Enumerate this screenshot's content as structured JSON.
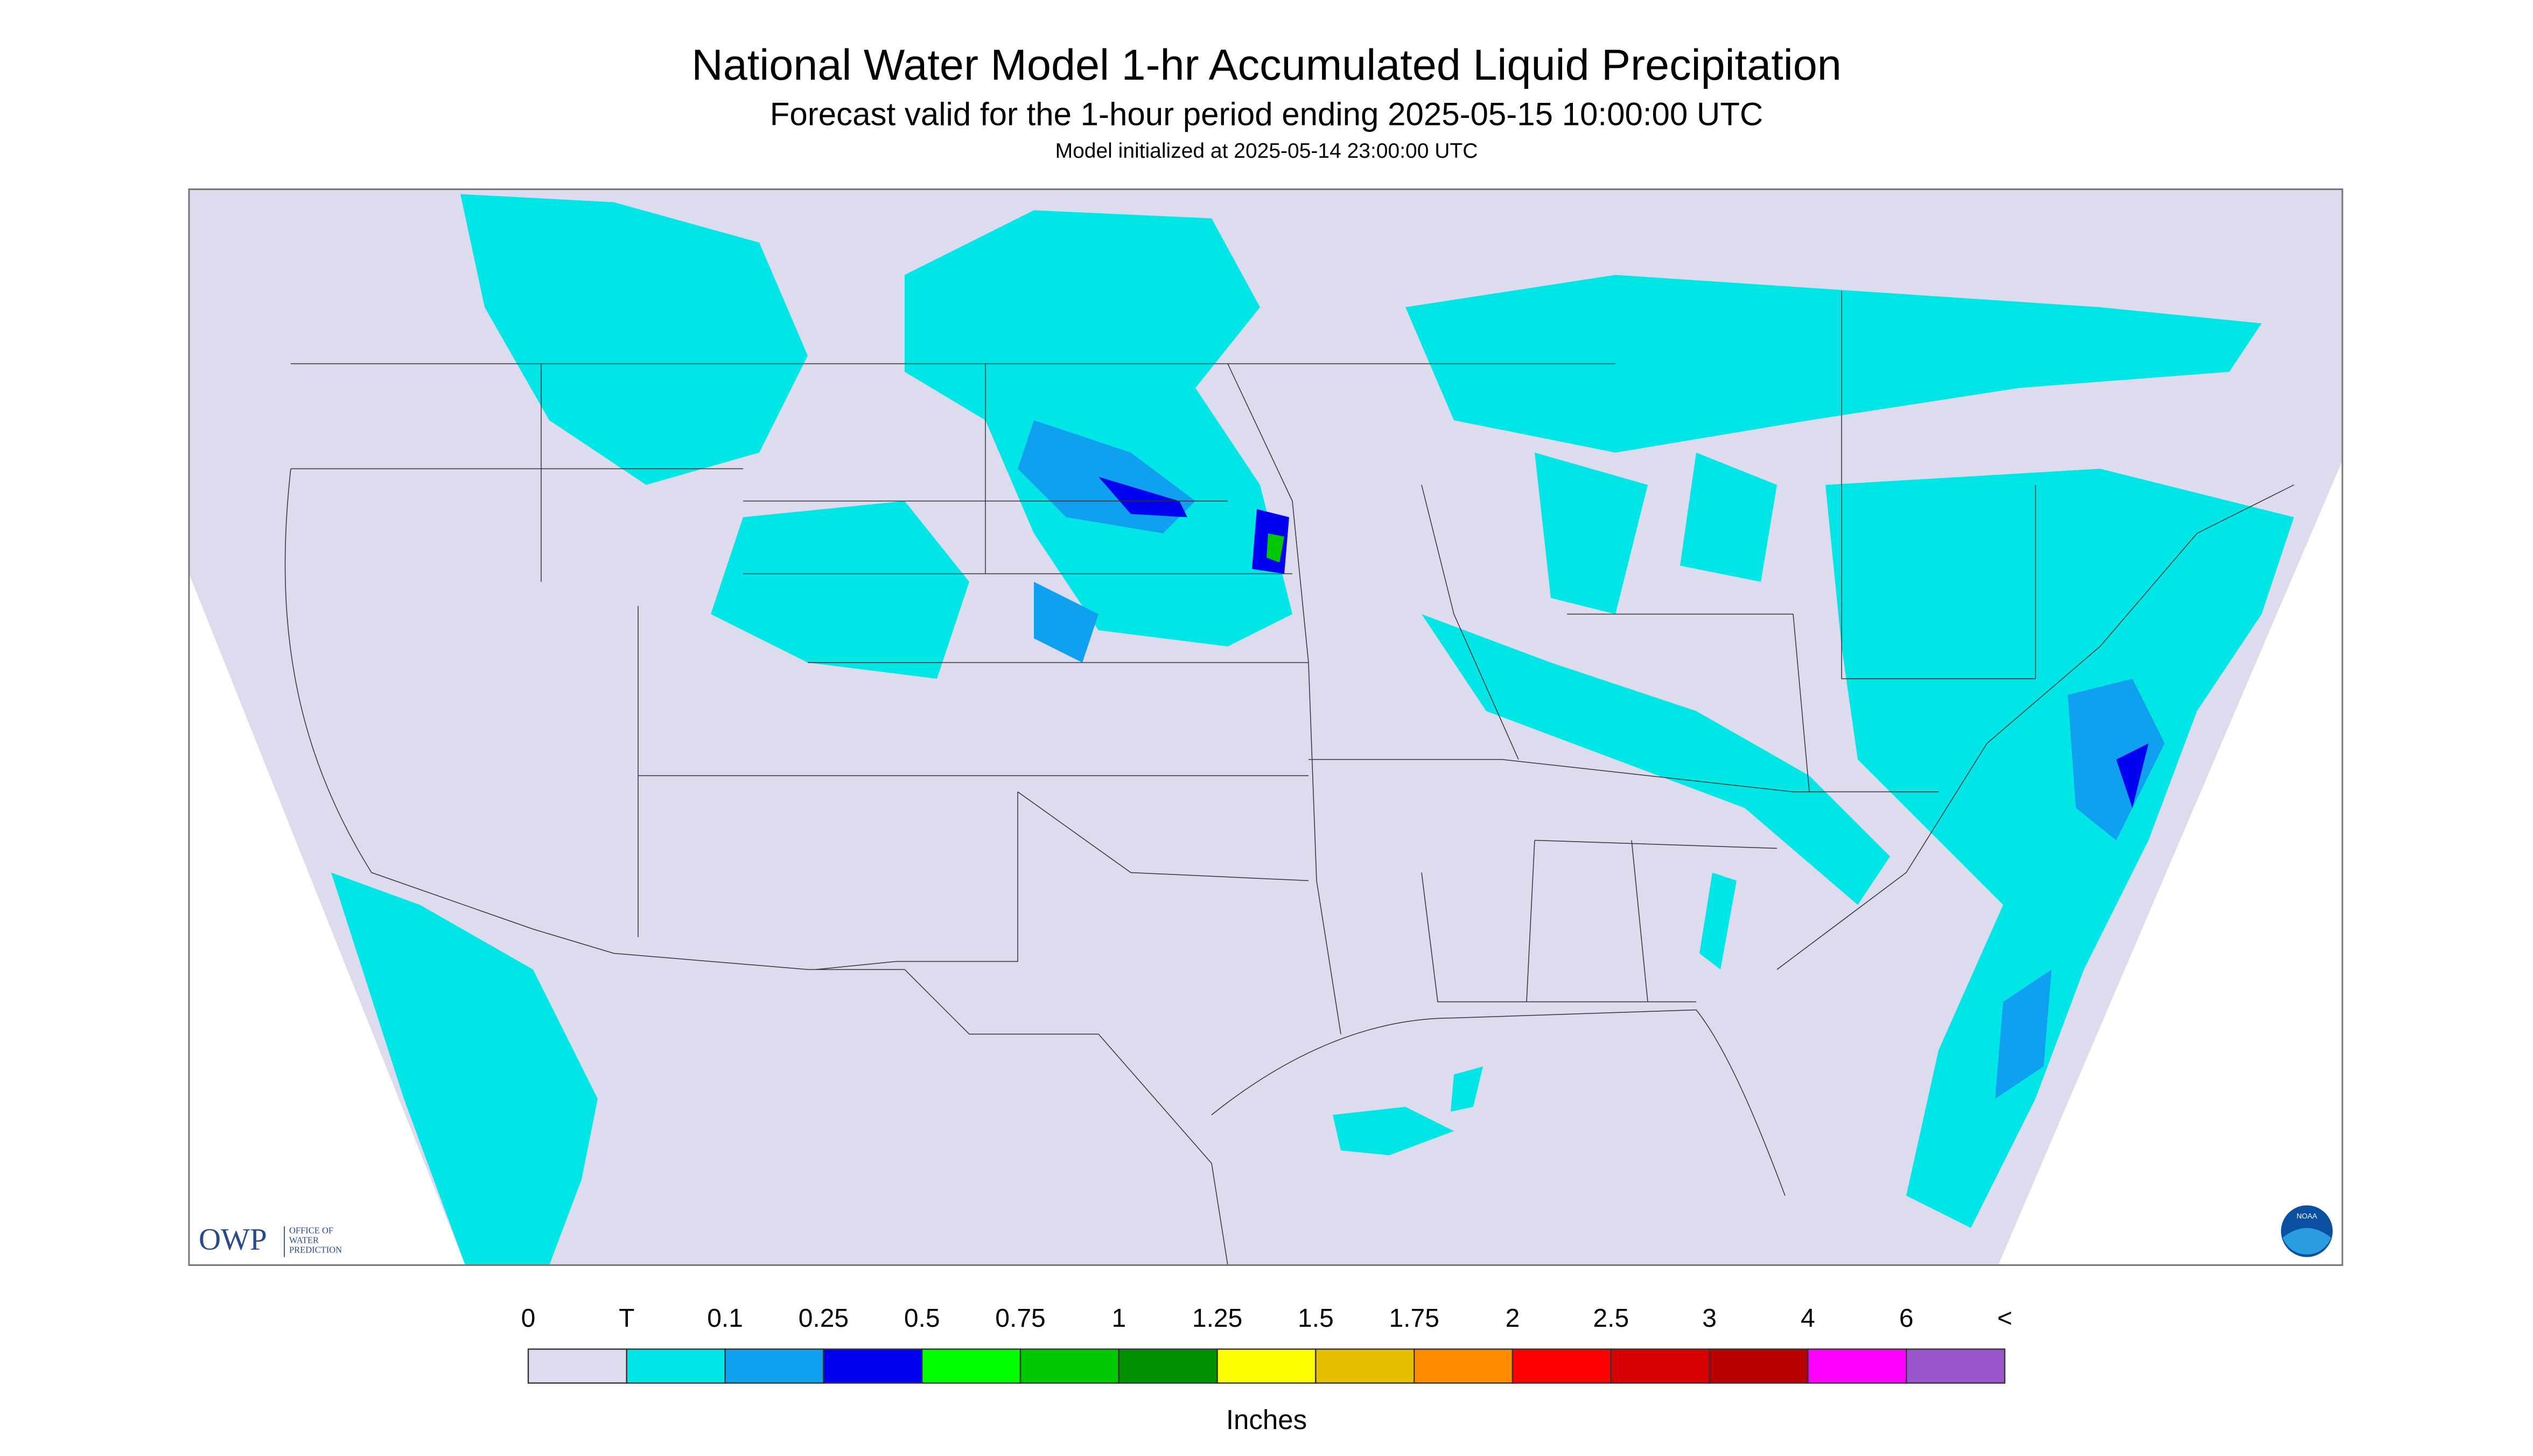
{
  "header": {
    "title": "National Water Model 1-hr Accumulated Liquid Precipitation",
    "subtitle": "Forecast valid for the 1-hour period ending 2025-05-15 10:00:00 UTC",
    "note": "Model initialized at 2025-05-14 23:00:00 UTC"
  },
  "logos": {
    "owp": "OWP",
    "owp_text": [
      "OFFICE OF",
      "WATER",
      "PREDICTION"
    ],
    "noaa": "NOAA"
  },
  "legend": {
    "labels": [
      "0",
      "T",
      "0.1",
      "0.25",
      "0.5",
      "0.75",
      "1",
      "1.25",
      "1.5",
      "1.75",
      "2",
      "2.5",
      "3",
      "4",
      "6",
      "<"
    ],
    "colors": [
      "#dcdcee",
      "#00e6e6",
      "#10a0f0",
      "#0000f0",
      "#00ff00",
      "#00c800",
      "#009000",
      "#ffff00",
      "#e6c000",
      "#ff8c00",
      "#ff0000",
      "#d70000",
      "#b80000",
      "#ff00ff",
      "#9955c9"
    ],
    "unit": "Inches"
  }
}
